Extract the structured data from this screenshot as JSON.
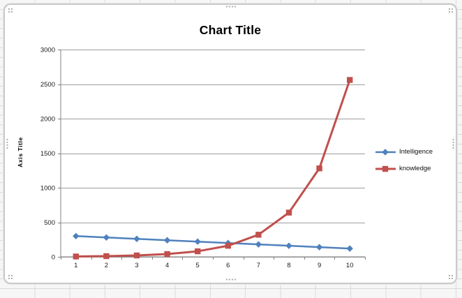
{
  "chart_data": {
    "type": "line",
    "title": "Chart Title",
    "y_axis_title": "Axis Title",
    "xlabel": "",
    "categories": [
      1,
      2,
      3,
      4,
      5,
      6,
      7,
      8,
      9,
      10
    ],
    "series": [
      {
        "name": "Intelligence",
        "values": [
          300,
          280,
          260,
          240,
          220,
          200,
          180,
          160,
          140,
          120
        ],
        "color": "#4F81BD",
        "marker": "diamond",
        "line_width": 2.5
      },
      {
        "name": "knowledge",
        "values": [
          5,
          10,
          20,
          40,
          80,
          160,
          320,
          640,
          1280,
          2560
        ],
        "color": "#C0504D",
        "marker": "square",
        "line_width": 3
      }
    ],
    "ylim": [
      0,
      3000
    ],
    "y_ticks": [
      0,
      500,
      1000,
      1500,
      2000,
      2500,
      3000
    ],
    "grid": true,
    "legend_position": "right-middle",
    "gridline_color": "#9e9e9e",
    "axis_color": "#808080"
  }
}
